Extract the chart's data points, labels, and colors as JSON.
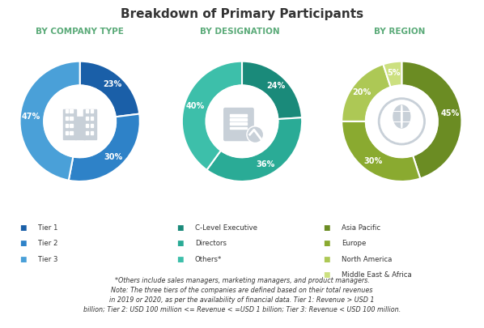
{
  "title": "Breakdown of Primary Participants",
  "title_fontsize": 11,
  "subtitle1": "BY COMPANY TYPE",
  "subtitle2": "BY DESIGNATION",
  "subtitle3": "BY REGION",
  "subtitle_color": "#5aaa78",
  "subtitle_fontsize": 7.5,
  "pie1_values": [
    23,
    30,
    47
  ],
  "pie1_labels": [
    "23%",
    "30%",
    "47%"
  ],
  "pie1_colors": [
    "#1a5fa8",
    "#2e82c8",
    "#4aa0d8"
  ],
  "pie1_legend": [
    "Tier 1",
    "Tier 2",
    "Tier 3"
  ],
  "pie1_startangle": 90,
  "pie2_values": [
    24,
    36,
    40
  ],
  "pie2_labels": [
    "24%",
    "36%",
    "40%"
  ],
  "pie2_colors": [
    "#1a8a7a",
    "#2aab96",
    "#3dbfaa"
  ],
  "pie2_legend": [
    "C-Level Executive",
    "Directors",
    "Others*"
  ],
  "pie2_startangle": 90,
  "pie3_values": [
    45,
    30,
    20,
    5
  ],
  "pie3_labels": [
    "45%",
    "30%",
    "20%",
    "5%"
  ],
  "pie3_colors": [
    "#6b8c23",
    "#8aaa30",
    "#adc855",
    "#cce080"
  ],
  "pie3_legend": [
    "Asia Pacific",
    "Europe",
    "North America",
    "Middle East & Africa"
  ],
  "pie3_startangle": 90,
  "note_text": "*Others include sales managers, marketing managers, and product managers.\nNote: The three tiers of the companies are defined based on their total revenues\nin 2019 or 2020, as per the availability of financial data. Tier 1: Revenue > USD 1\nbillion; Tier 2: USD 100 million <= Revenue < =USD 1 billion; Tier 3: Revenue < USD 100 million.",
  "note_fontsize": 5.8,
  "bg_color": "#ffffff",
  "text_color": "#333333"
}
